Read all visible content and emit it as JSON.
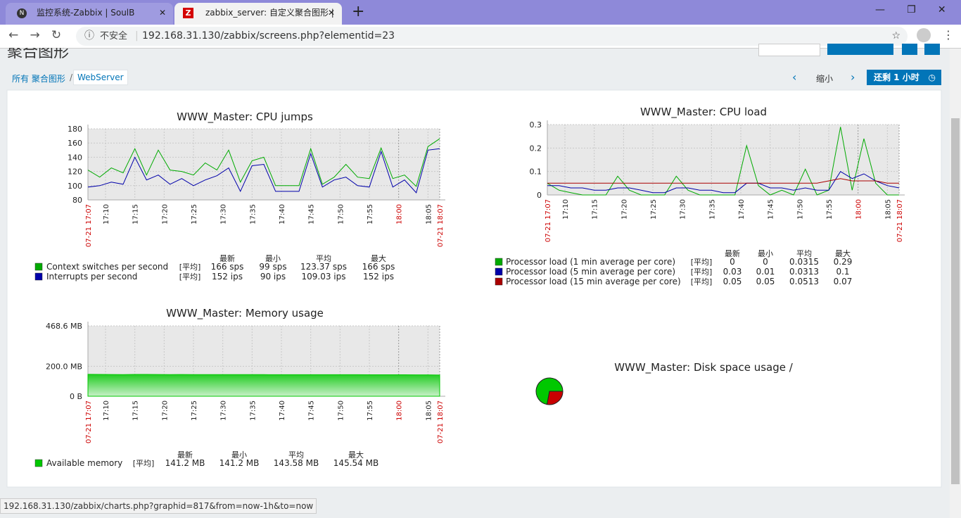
{
  "browser": {
    "tabs": [
      "监控系统-Zabbix | SoulB",
      "zabbix_server: 自定义聚合图形 |"
    ],
    "security": "不安全",
    "url": "192.168.31.130/zabbix/screens.php?elementid=23"
  },
  "page": {
    "title": "聚合图形",
    "breadcrumb": [
      "所有 聚合图形",
      "WebServer"
    ],
    "zoom_out": "缩小",
    "period": "还剩 1 小时"
  },
  "status_bar": "192.168.31.130/zabbix/charts.php?graphid=817&from=now-1h&to=now",
  "chart_data": [
    {
      "type": "line",
      "title": "WWW_Master: CPU jumps",
      "x": [
        "17:07",
        "17:09",
        "17:11",
        "17:13",
        "17:15",
        "17:17",
        "17:19",
        "17:21",
        "17:23",
        "17:25",
        "17:27",
        "17:29",
        "17:31",
        "17:33",
        "17:35",
        "17:37",
        "17:39",
        "17:41",
        "17:43",
        "17:45",
        "17:47",
        "17:49",
        "17:51",
        "17:53",
        "17:55",
        "17:57",
        "17:59",
        "18:01",
        "18:03",
        "18:05",
        "18:07"
      ],
      "xlim": [
        "17:07",
        "18:07"
      ],
      "xticks": [
        {
          "value": "17:07",
          "label": "07-21 17:07",
          "color": "#cc0000"
        },
        "17:10",
        "17:15",
        "17:20",
        "17:25",
        "17:30",
        "17:35",
        "17:40",
        "17:45",
        "17:50",
        "17:55",
        {
          "value": "18:00",
          "label": "18:00",
          "color": "#cc0000"
        },
        "18:05",
        {
          "value": "18:07",
          "label": "07-21 18:07",
          "color": "#cc0000"
        }
      ],
      "ylim": [
        80,
        180
      ],
      "yticks": [
        80,
        100,
        120,
        140,
        160,
        180
      ],
      "grid": true,
      "stat_headers": [
        "最新",
        "最小",
        "平均",
        "最大"
      ],
      "series": [
        {
          "name": "Context switches per second",
          "color": "#00aa00",
          "func": "[平均]",
          "stats": [
            "166 sps",
            "99 sps",
            "123.37 sps",
            "166 sps"
          ],
          "values": [
            122,
            112,
            125,
            118,
            152,
            115,
            150,
            122,
            120,
            115,
            132,
            122,
            150,
            105,
            135,
            140,
            100,
            100,
            100,
            152,
            102,
            112,
            130,
            112,
            110,
            153,
            110,
            115,
            99,
            155,
            166
          ]
        },
        {
          "name": "Interrupts per second",
          "color": "#0000aa",
          "func": "[平均]",
          "stats": [
            "152 ips",
            "90 ips",
            "109.03 ips",
            "152 ips"
          ],
          "values": [
            98,
            100,
            105,
            102,
            140,
            108,
            115,
            102,
            110,
            100,
            108,
            114,
            125,
            92,
            128,
            130,
            92,
            92,
            92,
            145,
            98,
            108,
            112,
            100,
            98,
            148,
            98,
            108,
            90,
            150,
            152
          ]
        }
      ]
    },
    {
      "type": "line",
      "title": "WWW_Master: CPU load",
      "x": [
        "17:07",
        "17:09",
        "17:11",
        "17:13",
        "17:15",
        "17:17",
        "17:19",
        "17:21",
        "17:23",
        "17:25",
        "17:27",
        "17:29",
        "17:31",
        "17:33",
        "17:35",
        "17:37",
        "17:39",
        "17:41",
        "17:43",
        "17:45",
        "17:47",
        "17:49",
        "17:51",
        "17:53",
        "17:55",
        "17:57",
        "17:59",
        "18:01",
        "18:03",
        "18:05",
        "18:07"
      ],
      "xlim": [
        "17:07",
        "18:07"
      ],
      "xticks": [
        {
          "value": "17:07",
          "label": "07-21 17:07",
          "color": "#cc0000"
        },
        "17:10",
        "17:15",
        "17:20",
        "17:25",
        "17:30",
        "17:35",
        "17:40",
        "17:45",
        "17:50",
        "17:55",
        {
          "value": "18:00",
          "label": "18:00",
          "color": "#cc0000"
        },
        "18:05",
        {
          "value": "18:07",
          "label": "07-21 18:07",
          "color": "#cc0000"
        }
      ],
      "ylim": [
        0,
        0.3
      ],
      "yticks": [
        0,
        0.1,
        0.2,
        0.3
      ],
      "grid": true,
      "stat_headers": [
        "最新",
        "最小",
        "平均",
        "最大"
      ],
      "series": [
        {
          "name": "Processor load (1 min average per core)",
          "color": "#00aa00",
          "func": "[平均]",
          "stats": [
            "0",
            "0",
            "0.0315",
            "0.29"
          ],
          "values": [
            0.05,
            0.02,
            0.01,
            0,
            0,
            0,
            0.08,
            0.02,
            0,
            0,
            0,
            0.08,
            0.02,
            0,
            0,
            0,
            0,
            0.21,
            0.04,
            0,
            0.02,
            0,
            0.11,
            0,
            0.02,
            0.29,
            0.02,
            0.24,
            0.05,
            0,
            0
          ]
        },
        {
          "name": "Processor load (5 min average per core)",
          "color": "#0000aa",
          "func": "[平均]",
          "stats": [
            "0.03",
            "0.01",
            "0.0313",
            "0.1"
          ],
          "values": [
            0.04,
            0.04,
            0.03,
            0.03,
            0.02,
            0.02,
            0.03,
            0.03,
            0.02,
            0.01,
            0.01,
            0.03,
            0.03,
            0.02,
            0.02,
            0.01,
            0.01,
            0.05,
            0.05,
            0.03,
            0.03,
            0.02,
            0.03,
            0.02,
            0.02,
            0.1,
            0.07,
            0.09,
            0.06,
            0.04,
            0.03
          ]
        },
        {
          "name": "Processor load (15 min average per core)",
          "color": "#aa0000",
          "func": "[平均]",
          "stats": [
            "0.05",
            "0.05",
            "0.0513",
            "0.07"
          ],
          "values": [
            0.05,
            0.05,
            0.05,
            0.05,
            0.05,
            0.05,
            0.05,
            0.05,
            0.05,
            0.05,
            0.05,
            0.05,
            0.05,
            0.05,
            0.05,
            0.05,
            0.05,
            0.05,
            0.05,
            0.05,
            0.05,
            0.05,
            0.05,
            0.05,
            0.06,
            0.07,
            0.06,
            0.06,
            0.06,
            0.05,
            0.05
          ]
        }
      ]
    },
    {
      "type": "area",
      "title": "WWW_Master: Memory usage",
      "x": [
        "17:07",
        "17:09",
        "17:11",
        "17:13",
        "17:15",
        "17:17",
        "17:19",
        "17:21",
        "17:23",
        "17:25",
        "17:27",
        "17:29",
        "17:31",
        "17:33",
        "17:35",
        "17:37",
        "17:39",
        "17:41",
        "17:43",
        "17:45",
        "17:47",
        "17:49",
        "17:51",
        "17:53",
        "17:55",
        "17:57",
        "17:59",
        "18:01",
        "18:03",
        "18:05",
        "18:07"
      ],
      "xlim": [
        "17:07",
        "18:07"
      ],
      "xticks": [
        {
          "value": "17:07",
          "label": "07-21 17:07",
          "color": "#cc0000"
        },
        "17:10",
        "17:15",
        "17:20",
        "17:25",
        "17:30",
        "17:35",
        "17:40",
        "17:45",
        "17:50",
        "17:55",
        {
          "value": "18:00",
          "label": "18:00",
          "color": "#cc0000"
        },
        "18:05",
        {
          "value": "18:07",
          "label": "07-21 18:07",
          "color": "#cc0000"
        }
      ],
      "ylim": [
        0,
        468.6
      ],
      "yticks": [
        {
          "value": 0,
          "label": "0 B"
        },
        {
          "value": 200,
          "label": "200.0 MB"
        },
        {
          "value": 468.6,
          "label": "468.6 MB"
        }
      ],
      "grid": true,
      "stat_headers": [
        "最新",
        "最小",
        "平均",
        "最大"
      ],
      "series": [
        {
          "name": "Available memory",
          "color": "#00c800",
          "func": "[平均]",
          "stats": [
            "141.2 MB",
            "141.2 MB",
            "143.58 MB",
            "145.54 MB"
          ],
          "values": [
            145.54,
            145.5,
            144.8,
            144.5,
            145.4,
            145.2,
            144.6,
            144.5,
            144.9,
            144.2,
            144,
            144,
            143.9,
            143.8,
            143.8,
            143.7,
            143.6,
            143.6,
            143.5,
            143.4,
            143.4,
            143.3,
            143.3,
            143.2,
            143.1,
            143,
            142.9,
            142.8,
            142.6,
            142.3,
            141.2
          ]
        }
      ]
    },
    {
      "type": "pie",
      "title": "WWW_Master: Disk space usage /",
      "values": [
        72,
        28
      ],
      "colors": [
        "#00c800",
        "#c80000"
      ]
    }
  ]
}
